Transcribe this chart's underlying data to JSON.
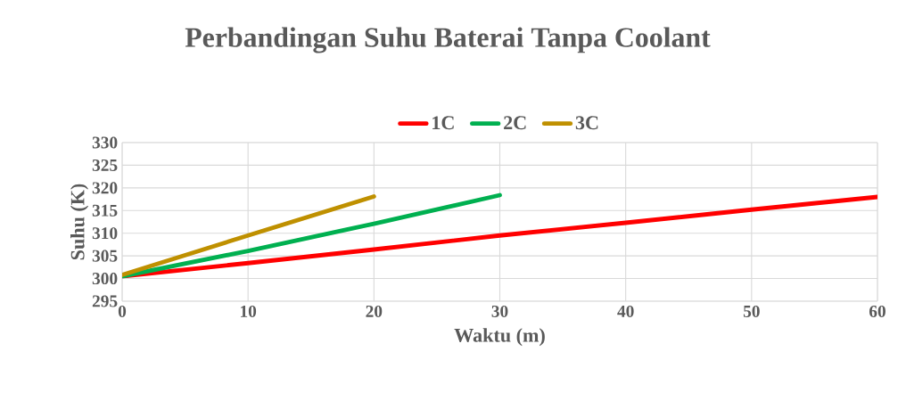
{
  "chart_data": {
    "type": "line",
    "title": "Perbandingan Suhu Baterai Tanpa Coolant",
    "xlabel": "Waktu (m)",
    "ylabel": "Suhu (K)",
    "xlim": [
      0,
      60
    ],
    "xticks": [
      0,
      10,
      20,
      30,
      40,
      50,
      60
    ],
    "ylim": [
      295,
      330
    ],
    "yticks": [
      295,
      300,
      305,
      310,
      315,
      320,
      325,
      330
    ],
    "grid": true,
    "legend": "top",
    "line_style": "solid",
    "marker": "none",
    "series": [
      {
        "name": "1C",
        "color": "#ff0000",
        "x": [
          0,
          10,
          20,
          30,
          40,
          50,
          60
        ],
        "values": [
          300.5,
          303.4,
          306.4,
          309.5,
          312.3,
          315.2,
          318.0
        ]
      },
      {
        "name": "2C",
        "color": "#00b050",
        "x": [
          0,
          10,
          20,
          30
        ],
        "values": [
          300.5,
          306.1,
          312.1,
          318.4
        ]
      },
      {
        "name": "3C",
        "color": "#bf9000",
        "x": [
          0,
          10,
          20
        ],
        "values": [
          300.8,
          309.5,
          318.1
        ]
      }
    ]
  }
}
